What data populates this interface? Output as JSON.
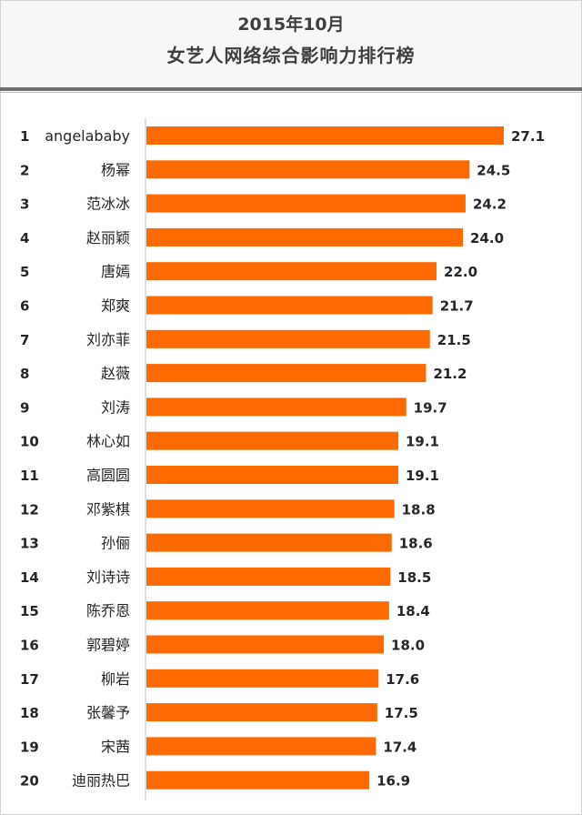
{
  "header": {
    "title_line1": "2015年10月",
    "title_line2": "女艺人网络综合影响力排行榜"
  },
  "colors": {
    "bar": "#fe6a00",
    "axis": "#bfbfbf",
    "text": "#262626",
    "header_bg": "#f7f7f7"
  },
  "chart_data": {
    "type": "bar",
    "orientation": "horizontal",
    "title": "2015年10月 女艺人网络综合影响力排行榜",
    "ranks": [
      "1",
      "2",
      "3",
      "4",
      "5",
      "6",
      "7",
      "8",
      "9",
      "10",
      "11",
      "12",
      "13",
      "14",
      "15",
      "16",
      "17",
      "18",
      "19",
      "20"
    ],
    "categories": [
      "angelababy",
      "杨幂",
      "范冰冰",
      "赵丽颖",
      "唐嫣",
      "郑爽",
      "刘亦菲",
      "赵薇",
      "刘涛",
      "林心如",
      "高圆圆",
      "邓紫棋",
      "孙俪",
      "刘诗诗",
      "陈乔恩",
      "郭碧婷",
      "柳岩",
      "张馨予",
      "宋茜",
      "迪丽热巴"
    ],
    "values": [
      27.1,
      24.5,
      24.2,
      24.0,
      22.0,
      21.7,
      21.5,
      21.2,
      19.7,
      19.1,
      19.1,
      18.8,
      18.6,
      18.5,
      18.4,
      18.0,
      17.6,
      17.5,
      17.4,
      16.9
    ],
    "value_labels": [
      "27.1",
      "24.5",
      "24.2",
      "24.0",
      "22.0",
      "21.7",
      "21.5",
      "21.2",
      "19.7",
      "19.1",
      "19.1",
      "18.8",
      "18.6",
      "18.5",
      "18.4",
      "18.0",
      "17.6",
      "17.5",
      "17.4",
      "16.9"
    ],
    "xlim": [
      0,
      29.5
    ],
    "grid": false,
    "legend": "none"
  }
}
